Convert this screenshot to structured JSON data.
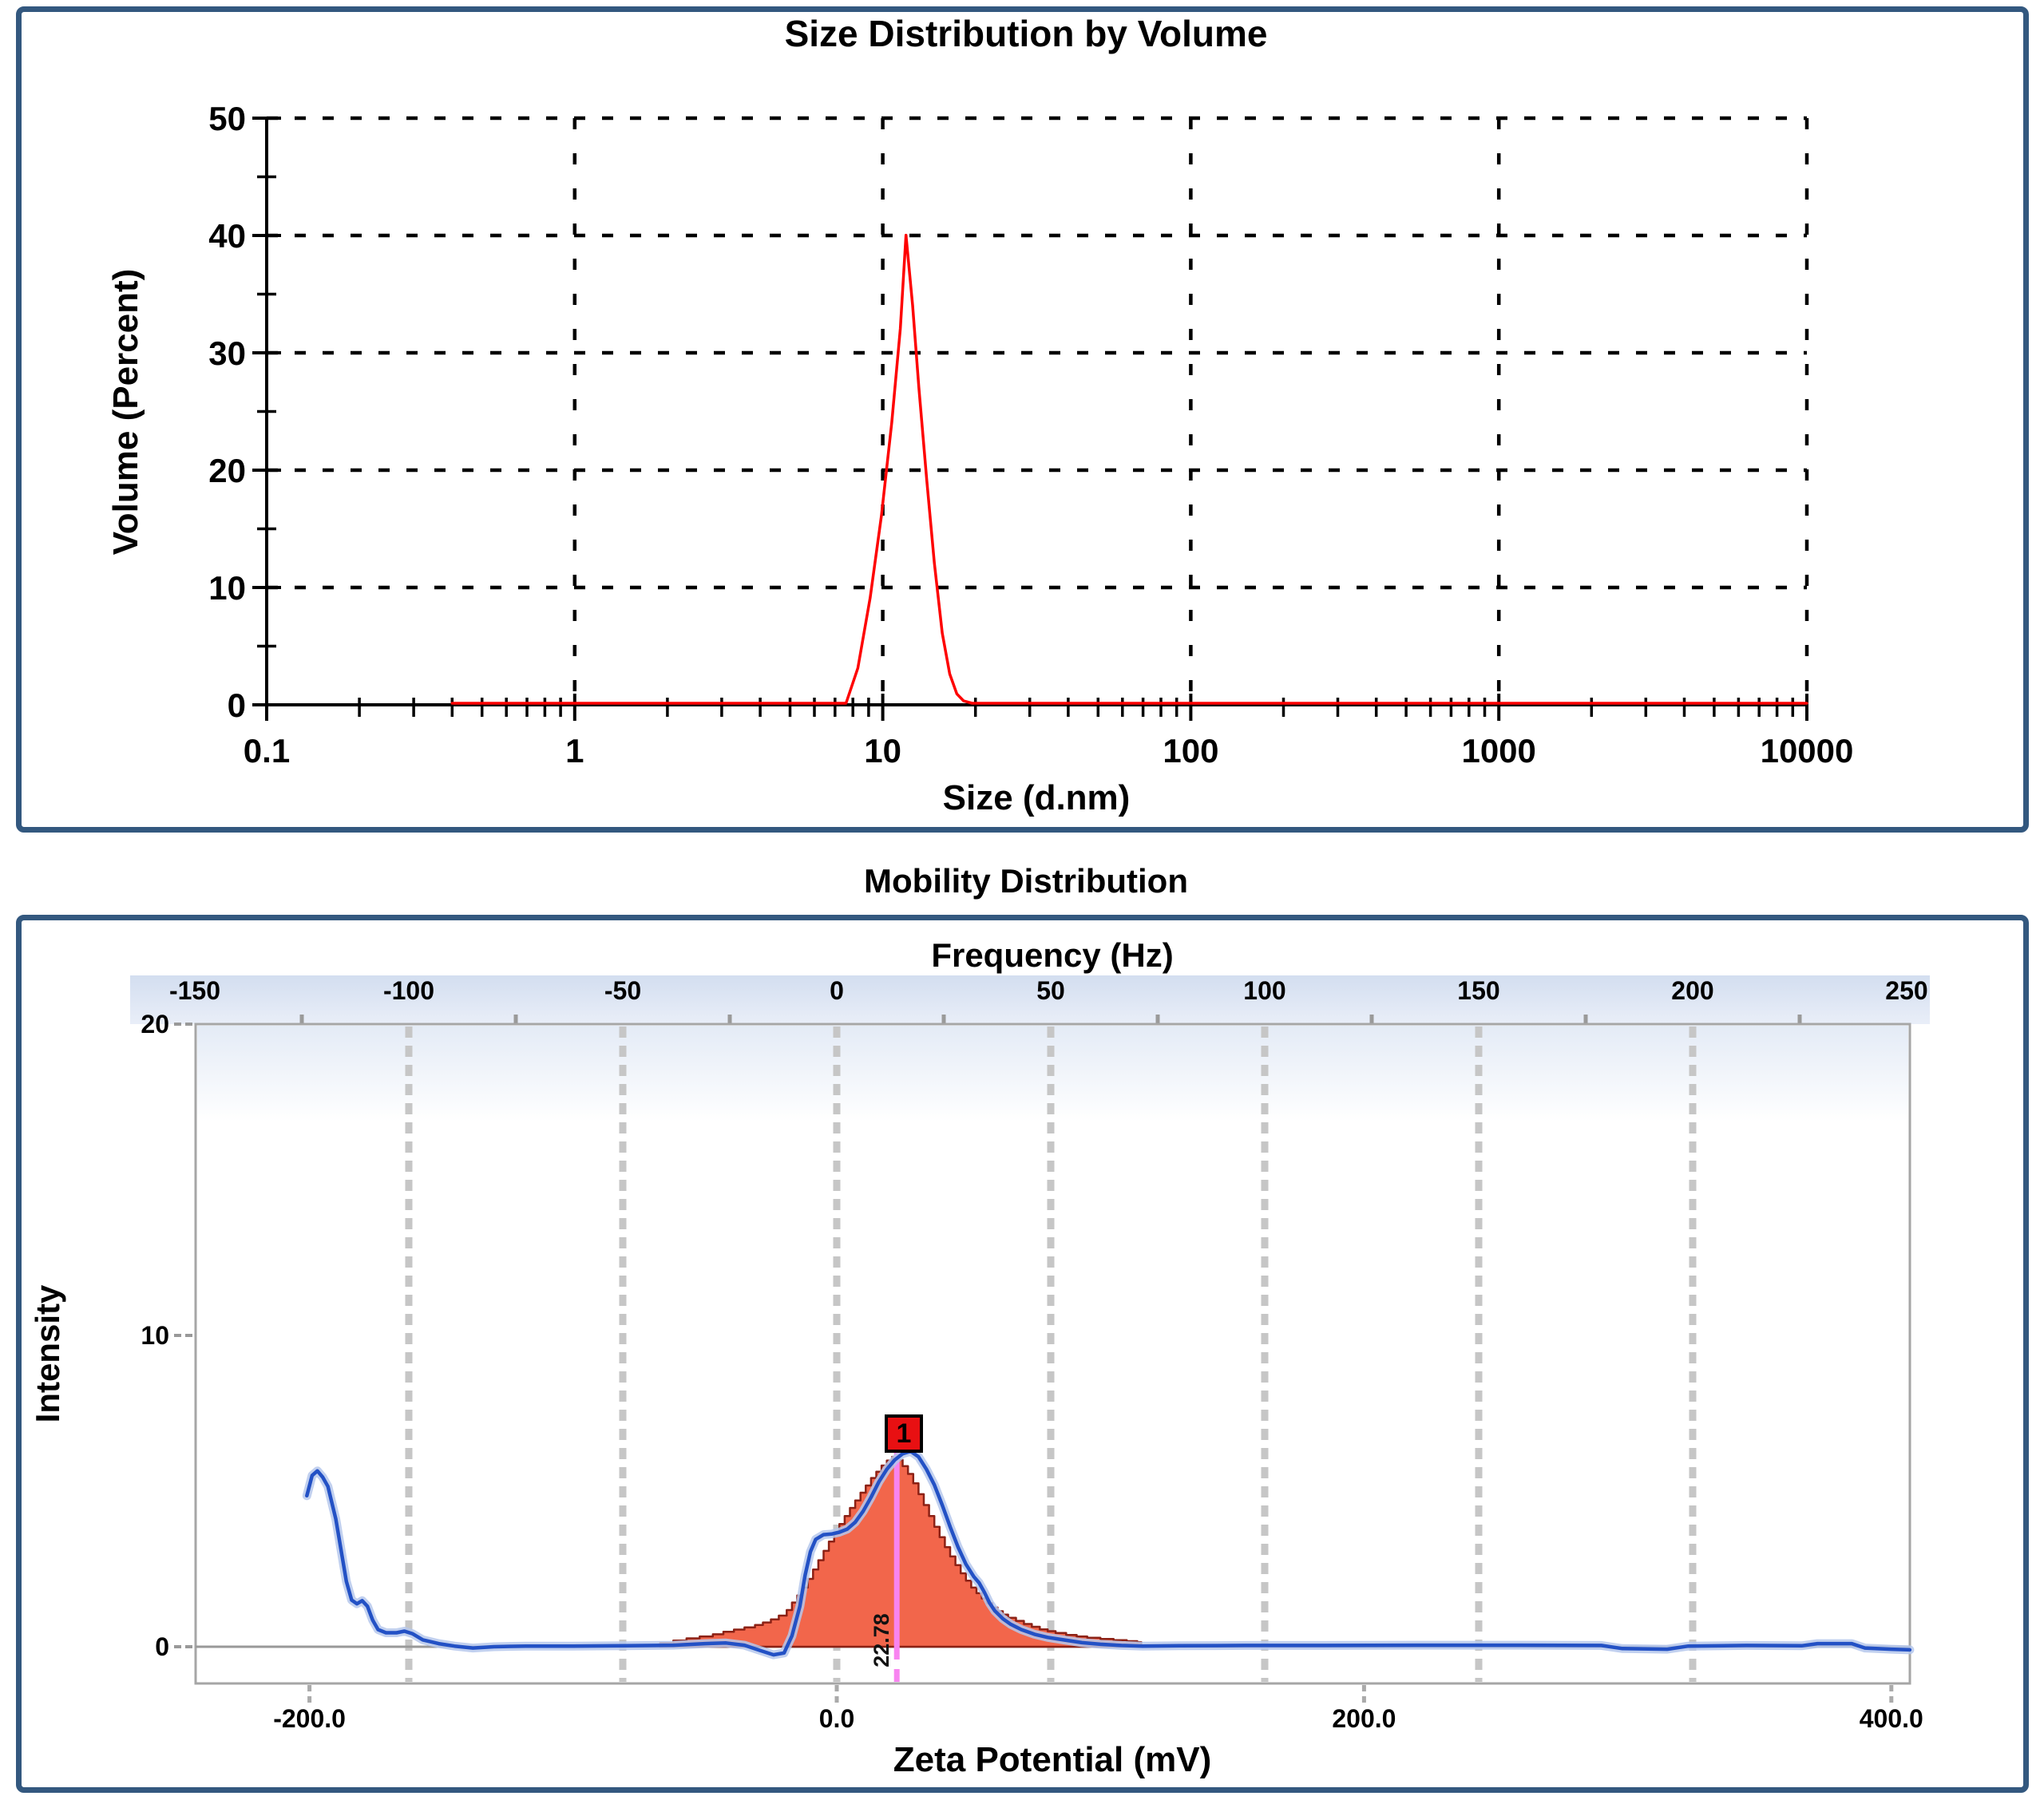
{
  "page": {
    "background": "#ffffff",
    "panel_border_color": "#33587f"
  },
  "chart_data": [
    {
      "type": "line",
      "title": "Size Distribution by Volume",
      "xlabel": "Size (d.nm)",
      "ylabel": "Volume (Percent)",
      "x_scale": "log",
      "xlim": [
        0.1,
        10000
      ],
      "ylim": [
        0,
        50
      ],
      "xticks": [
        0.1,
        1,
        10,
        100,
        1000,
        10000
      ],
      "xtick_labels": [
        "0.1",
        "1",
        "10",
        "100",
        "1000",
        "10000"
      ],
      "yticks": [
        0,
        10,
        20,
        30,
        40,
        50
      ],
      "ytick_labels": [
        "0",
        "10",
        "20",
        "30",
        "40",
        "50"
      ],
      "grid": "dashed-black",
      "legend": "none",
      "series": [
        {
          "name": "volume-distribution",
          "color": "#fe0000",
          "points": [
            [
              0.4,
              0
            ],
            [
              7.6,
              0
            ],
            [
              8.3,
              3
            ],
            [
              9.1,
              9
            ],
            [
              9.9,
              16
            ],
            [
              10.7,
              24
            ],
            [
              11.4,
              32
            ],
            [
              11.9,
              40
            ],
            [
              12.5,
              34
            ],
            [
              13.1,
              27
            ],
            [
              13.9,
              19
            ],
            [
              14.7,
              12
            ],
            [
              15.6,
              6
            ],
            [
              16.5,
              2.5
            ],
            [
              17.4,
              0.8
            ],
            [
              18.3,
              0.2
            ],
            [
              19.5,
              0
            ],
            [
              10000,
              0
            ]
          ]
        }
      ]
    },
    {
      "type": "area+line",
      "title": "Mobility Distribution",
      "ylabel": "Intensity",
      "ylim": [
        -1.2,
        20
      ],
      "yticks": [
        0,
        10,
        20
      ],
      "ytick_labels": [
        "0",
        "10",
        "20"
      ],
      "top_axis": {
        "label": "Frequency (Hz)",
        "ticks": [
          -150,
          -100,
          -50,
          0,
          50,
          100,
          150,
          200,
          250
        ],
        "tick_labels": [
          "-150",
          "-100",
          "-50",
          "0",
          "50",
          "100",
          "150",
          "200",
          "250"
        ]
      },
      "bottom_axis": {
        "label": "Zeta Potential (mV)",
        "ticks": [
          -200,
          0,
          200,
          400
        ],
        "tick_labels": [
          "-200.0",
          "0.0",
          "200.0",
          "400.0"
        ],
        "range_mv": [
          -243,
          407
        ]
      },
      "grid": "gray-vertical-at-frequency-ticks",
      "band_color_top": "#d3def0",
      "band_color_bottom": "#e9eef8",
      "peak_marker": {
        "label": "1",
        "value_mv": 22.78,
        "value_label": "22.78",
        "box_color": "#e81012",
        "line_color": "#f884f0"
      },
      "histogram": {
        "name": "zeta-potential-distribution",
        "fill": "#f2664b",
        "edge": "#8c2115",
        "end": 115.5,
        "points": [
          [
            -67,
            0.12
          ],
          [
            -62,
            0.2
          ],
          [
            -57,
            0.27
          ],
          [
            -52,
            0.33
          ],
          [
            -47,
            0.4
          ],
          [
            -43,
            0.48
          ],
          [
            -39,
            0.55
          ],
          [
            -35,
            0.62
          ],
          [
            -31,
            0.7
          ],
          [
            -28,
            0.78
          ],
          [
            -25,
            0.88
          ],
          [
            -22,
            1.0
          ],
          [
            -19,
            1.18
          ],
          [
            -17,
            1.42
          ],
          [
            -15,
            1.65
          ],
          [
            -13,
            1.9
          ],
          [
            -11,
            2.18
          ],
          [
            -9,
            2.48
          ],
          [
            -7,
            2.78
          ],
          [
            -5,
            3.08
          ],
          [
            -3,
            3.38
          ],
          [
            -1,
            3.66
          ],
          [
            1,
            3.94
          ],
          [
            3,
            4.2
          ],
          [
            5,
            4.46
          ],
          [
            7,
            4.7
          ],
          [
            9,
            4.95
          ],
          [
            11,
            5.18
          ],
          [
            13,
            5.42
          ],
          [
            15,
            5.62
          ],
          [
            17,
            5.82
          ],
          [
            19,
            5.98
          ],
          [
            21,
            6.1
          ],
          [
            23,
            6.0
          ],
          [
            25,
            5.8
          ],
          [
            27,
            5.55
          ],
          [
            29,
            5.25
          ],
          [
            31,
            4.9
          ],
          [
            33,
            4.55
          ],
          [
            35,
            4.2
          ],
          [
            37,
            3.85
          ],
          [
            39,
            3.52
          ],
          [
            41,
            3.2
          ],
          [
            43,
            2.9
          ],
          [
            45,
            2.62
          ],
          [
            47,
            2.36
          ],
          [
            49,
            2.12
          ],
          [
            51,
            1.9
          ],
          [
            53,
            1.72
          ],
          [
            55,
            1.55
          ],
          [
            57,
            1.4
          ],
          [
            59,
            1.26
          ],
          [
            61,
            1.14
          ],
          [
            63,
            1.03
          ],
          [
            65,
            0.93
          ],
          [
            68,
            0.83
          ],
          [
            71,
            0.73
          ],
          [
            74,
            0.64
          ],
          [
            77,
            0.56
          ],
          [
            80,
            0.5
          ],
          [
            83,
            0.44
          ],
          [
            87,
            0.38
          ],
          [
            91,
            0.33
          ],
          [
            95,
            0.29
          ],
          [
            100,
            0.25
          ],
          [
            105,
            0.21
          ],
          [
            110,
            0.18
          ],
          [
            114,
            0.15
          ]
        ]
      },
      "line": {
        "name": "mobility-frequency-curve",
        "color": "#2351c5",
        "halo": "#b6c8ec",
        "points": [
          [
            -201,
            4.85
          ],
          [
            -199,
            5.5
          ],
          [
            -197,
            5.65
          ],
          [
            -195,
            5.45
          ],
          [
            -193,
            5.15
          ],
          [
            -190,
            4.1
          ],
          [
            -188,
            3.1
          ],
          [
            -186,
            2.1
          ],
          [
            -184,
            1.5
          ],
          [
            -182,
            1.38
          ],
          [
            -180,
            1.48
          ],
          [
            -178,
            1.3
          ],
          [
            -176,
            0.85
          ],
          [
            -174,
            0.55
          ],
          [
            -171,
            0.45
          ],
          [
            -167,
            0.45
          ],
          [
            -164,
            0.5
          ],
          [
            -161,
            0.42
          ],
          [
            -157,
            0.22
          ],
          [
            -151,
            0.1
          ],
          [
            -145,
            0.02
          ],
          [
            -138,
            -0.04
          ],
          [
            -130,
            0
          ],
          [
            -118,
            0.02
          ],
          [
            -100,
            0.02
          ],
          [
            -80,
            0.03
          ],
          [
            -62,
            0.05
          ],
          [
            -50,
            0.1
          ],
          [
            -42,
            0.12
          ],
          [
            -35,
            0.05
          ],
          [
            -29,
            -0.12
          ],
          [
            -24,
            -0.26
          ],
          [
            -20,
            -0.2
          ],
          [
            -17,
            0.35
          ],
          [
            -14,
            1.3
          ],
          [
            -12,
            2.3
          ],
          [
            -10,
            3.05
          ],
          [
            -8,
            3.45
          ],
          [
            -5,
            3.6
          ],
          [
            -2,
            3.62
          ],
          [
            1,
            3.68
          ],
          [
            4,
            3.78
          ],
          [
            7,
            4.0
          ],
          [
            10,
            4.35
          ],
          [
            13,
            4.8
          ],
          [
            16,
            5.3
          ],
          [
            19,
            5.7
          ],
          [
            22,
            6.0
          ],
          [
            25,
            6.2
          ],
          [
            28,
            6.28
          ],
          [
            31,
            6.1
          ],
          [
            34,
            5.7
          ],
          [
            37,
            5.2
          ],
          [
            40,
            4.55
          ],
          [
            43,
            3.85
          ],
          [
            46,
            3.2
          ],
          [
            49,
            2.65
          ],
          [
            52,
            2.25
          ],
          [
            54,
            2.05
          ],
          [
            56,
            1.75
          ],
          [
            58,
            1.4
          ],
          [
            60,
            1.15
          ],
          [
            63,
            0.9
          ],
          [
            66,
            0.72
          ],
          [
            70,
            0.55
          ],
          [
            75,
            0.4
          ],
          [
            80,
            0.3
          ],
          [
            86,
            0.22
          ],
          [
            93,
            0.13
          ],
          [
            100,
            0.08
          ],
          [
            108,
            0.04
          ],
          [
            116,
            0.02
          ],
          [
            130,
            0.03
          ],
          [
            155,
            0.04
          ],
          [
            185,
            0.04
          ],
          [
            220,
            0.05
          ],
          [
            258,
            0.05
          ],
          [
            290,
            0.04
          ],
          [
            298,
            -0.06
          ],
          [
            315,
            -0.08
          ],
          [
            323,
            0.02
          ],
          [
            345,
            0.04
          ],
          [
            366,
            0.03
          ],
          [
            372,
            0.1
          ],
          [
            385,
            0.1
          ],
          [
            390,
            -0.04
          ],
          [
            400,
            -0.08
          ],
          [
            407,
            -0.1
          ]
        ]
      }
    }
  ]
}
